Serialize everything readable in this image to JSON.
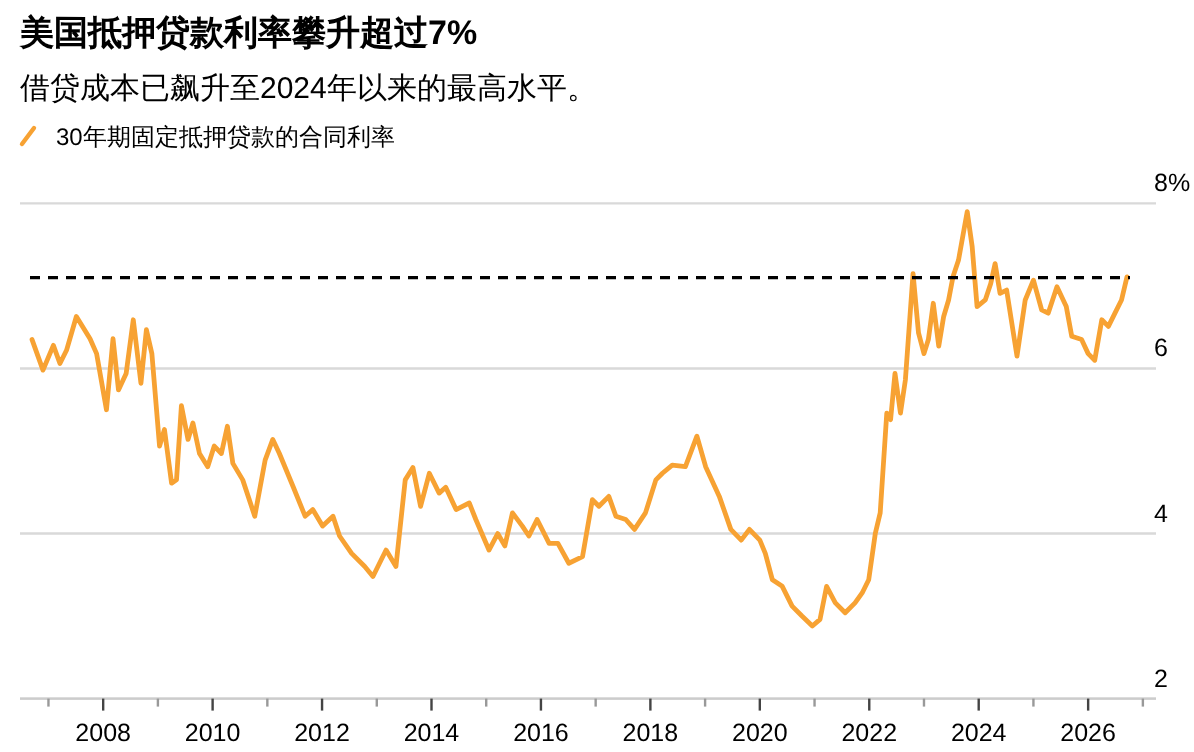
{
  "chart_data": {
    "type": "line",
    "title": "美国抵押贷款利率攀升超过7%",
    "subtitle": "借贷成本已飙升至2024年以来的最高水平。",
    "legend": "top left",
    "grid": "y",
    "marker": "none",
    "line_style": "solid",
    "xlim": [
      2006.48,
      2027.24
    ],
    "ylim": [
      2,
      8
    ],
    "xticks": [
      {
        "value": 2007,
        "label": null
      },
      2008,
      {
        "value": 2009,
        "label": null
      },
      2010,
      {
        "value": 2011,
        "label": null
      },
      2012,
      {
        "value": 2013,
        "label": null
      },
      2014,
      {
        "value": 2015,
        "label": null
      },
      2016,
      {
        "value": 2017,
        "label": null
      },
      2018,
      {
        "value": 2019,
        "label": null
      },
      2020,
      {
        "value": 2021,
        "label": null
      },
      2022,
      {
        "value": 2023,
        "label": null
      },
      2024,
      {
        "value": 2025,
        "label": null
      },
      2026,
      {
        "value": 2027,
        "label": null
      }
    ],
    "yticks": [
      2,
      4,
      6,
      {
        "value": 8,
        "label": "8%"
      }
    ],
    "ref_lines": [
      {
        "axis": "y",
        "value": 7.1,
        "color": "#000000",
        "line_style": "dashed"
      }
    ],
    "series": [
      {
        "name": "30年期固定抵押贷款的合同利率",
        "color": "#f7a233",
        "x": [
          2006.7,
          2006.9,
          2007.09,
          2007.21,
          2007.33,
          2007.51,
          2007.76,
          2007.88,
          2008.06,
          2008.18,
          2008.28,
          2008.42,
          2008.55,
          2008.69,
          2008.79,
          2008.89,
          2009.03,
          2009.12,
          2009.25,
          2009.34,
          2009.43,
          2009.55,
          2009.64,
          2009.76,
          2009.91,
          2010.03,
          2010.16,
          2010.27,
          2010.37,
          2010.55,
          2010.77,
          2010.96,
          2011.1,
          2011.22,
          2011.47,
          2011.69,
          2011.83,
          2012.01,
          2012.2,
          2012.32,
          2012.54,
          2012.78,
          2012.93,
          2013.17,
          2013.35,
          2013.52,
          2013.66,
          2013.8,
          2013.96,
          2014.14,
          2014.26,
          2014.45,
          2014.69,
          2014.81,
          2015.05,
          2015.21,
          2015.34,
          2015.48,
          2015.66,
          2015.78,
          2015.93,
          2016.15,
          2016.31,
          2016.51,
          2016.76,
          2016.94,
          2017.06,
          2017.24,
          2017.37,
          2017.55,
          2017.71,
          2017.91,
          2018.1,
          2018.22,
          2018.4,
          2018.64,
          2018.85,
          2019.01,
          2019.26,
          2019.47,
          2019.66,
          2019.81,
          2020.0,
          2020.1,
          2020.23,
          2020.41,
          2020.59,
          2020.77,
          2020.96,
          2021.1,
          2021.22,
          2021.38,
          2021.56,
          2021.74,
          2021.87,
          2021.99,
          2022.11,
          2022.2,
          2022.32,
          2022.39,
          2022.47,
          2022.57,
          2022.66,
          2022.8,
          2022.9,
          2023.0,
          2023.08,
          2023.17,
          2023.27,
          2023.36,
          2023.45,
          2023.53,
          2023.63,
          2023.79,
          2023.88,
          2023.97,
          2024.12,
          2024.22,
          2024.3,
          2024.39,
          2024.51,
          2024.7,
          2024.85,
          2025.0,
          2025.15,
          2025.27,
          2025.43,
          2025.6,
          2025.7,
          2025.88,
          2026.0,
          2026.12,
          2026.25,
          2026.37,
          2026.49,
          2026.61,
          2026.71
        ],
        "values": [
          6.35,
          5.98,
          6.28,
          6.06,
          6.22,
          6.63,
          6.36,
          6.18,
          5.5,
          6.36,
          5.74,
          5.94,
          6.59,
          5.82,
          6.47,
          6.18,
          5.06,
          5.26,
          4.61,
          4.65,
          5.55,
          5.14,
          5.34,
          4.97,
          4.81,
          5.06,
          4.97,
          5.3,
          4.85,
          4.65,
          4.21,
          4.89,
          5.14,
          4.97,
          4.57,
          4.21,
          4.29,
          4.09,
          4.21,
          3.97,
          3.76,
          3.6,
          3.48,
          3.8,
          3.6,
          4.65,
          4.8,
          4.33,
          4.73,
          4.49,
          4.56,
          4.29,
          4.37,
          4.17,
          3.8,
          4.0,
          3.85,
          4.25,
          4.09,
          3.97,
          4.17,
          3.88,
          3.88,
          3.64,
          3.72,
          4.41,
          4.33,
          4.45,
          4.21,
          4.17,
          4.05,
          4.25,
          4.65,
          4.73,
          4.83,
          4.81,
          5.18,
          4.81,
          4.45,
          4.05,
          3.92,
          4.05,
          3.92,
          3.76,
          3.44,
          3.36,
          3.12,
          3.0,
          2.88,
          2.96,
          3.36,
          3.16,
          3.04,
          3.16,
          3.28,
          3.44,
          4.0,
          4.25,
          5.46,
          5.38,
          5.94,
          5.46,
          5.86,
          7.15,
          6.43,
          6.18,
          6.35,
          6.79,
          6.27,
          6.63,
          6.83,
          7.11,
          7.31,
          7.9,
          7.48,
          6.75,
          6.83,
          7.03,
          7.27,
          6.91,
          6.95,
          6.15,
          6.83,
          7.07,
          6.71,
          6.67,
          6.99,
          6.75,
          6.39,
          6.35,
          6.18,
          6.1,
          6.59,
          6.51,
          6.67,
          6.83,
          7.11
        ]
      }
    ]
  }
}
